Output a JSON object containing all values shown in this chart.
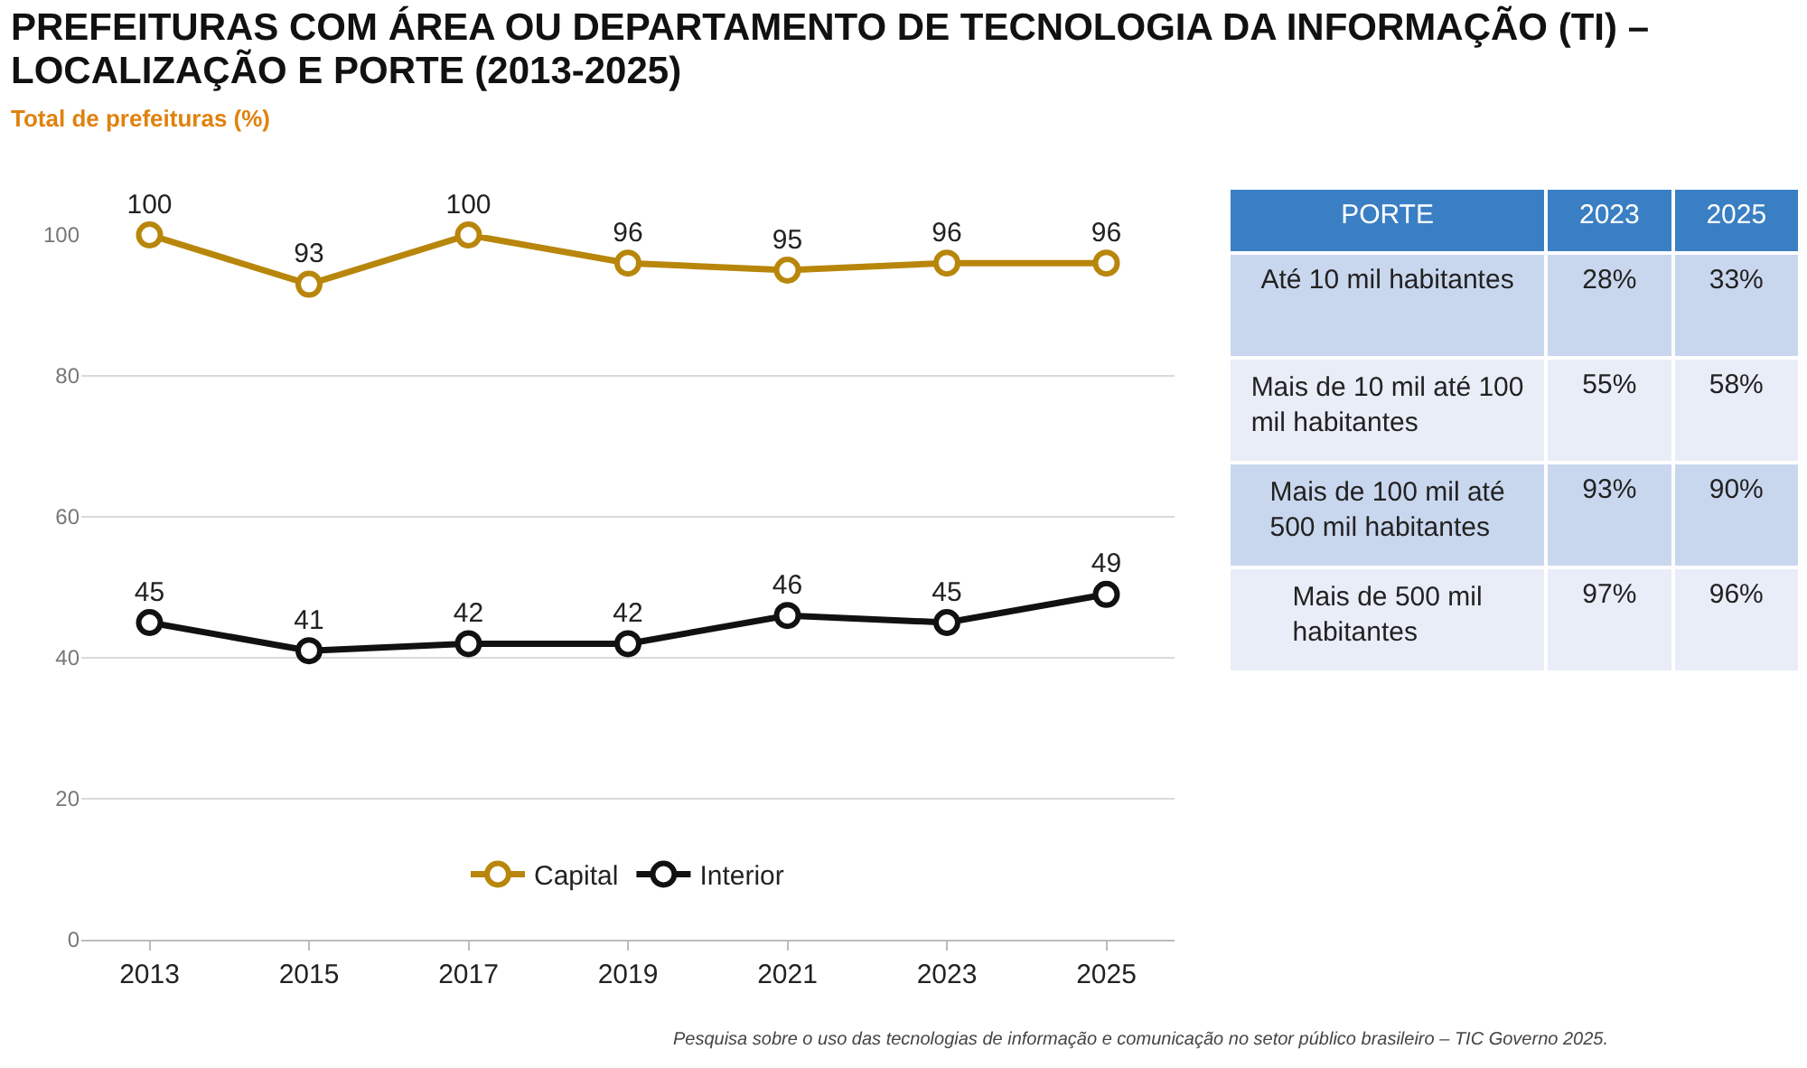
{
  "chart_data": [
    {
      "type": "line",
      "title": "PREFEITURAS COM ÁREA OU DEPARTAMENTO DE TECNOLOGIA DA INFORMAÇÃO (TI) – LOCALIZAÇÃO E PORTE (2013-2025)",
      "subtitle": "Total de prefeituras (%)",
      "categories": [
        "2013",
        "2015",
        "2017",
        "2019",
        "2021",
        "2023",
        "2025"
      ],
      "series": [
        {
          "name": "Capital",
          "color": "#b8860b",
          "values": [
            100,
            93,
            100,
            96,
            95,
            96,
            96
          ]
        },
        {
          "name": "Interior",
          "color": "#111111",
          "values": [
            45,
            41,
            42,
            42,
            46,
            45,
            49
          ]
        }
      ],
      "ylim": [
        0,
        100
      ],
      "yticks": [
        0,
        20,
        40,
        60,
        80,
        100
      ],
      "grid": "y",
      "legend": "bottom",
      "marker": "circle",
      "line_style": "solid",
      "data_labels": true,
      "annotations": [
        "Pesquisa sobre o uso das tecnologias de informação e comunicação no setor público brasileiro – TIC Governo 2025."
      ]
    },
    {
      "type": "other",
      "xlabel": "PORTE",
      "categories": [
        "Até 10 mil habitantes",
        "Mais de 10 mil até 100 mil habitantes",
        "Mais de 100 mil até 500 mil habitantes",
        "Mais de 500 mil habitantes"
      ],
      "series": [
        {
          "name": "2023",
          "values": [
            28,
            55,
            93,
            97
          ],
          "colors": [
            "#c9d7ee",
            "#e8edf8",
            "#c9d7ee",
            "#e8edf8"
          ],
          "value_labels": [
            "28%",
            "55%",
            "93%",
            "97%"
          ]
        },
        {
          "name": "2025",
          "values": [
            33,
            58,
            90,
            96
          ],
          "colors": [
            "#c9d7ee",
            "#e8edf8",
            "#c9d7ee",
            "#e8edf8"
          ],
          "value_labels": [
            "33%",
            "58%",
            "90%",
            "96%"
          ]
        }
      ]
    }
  ]
}
